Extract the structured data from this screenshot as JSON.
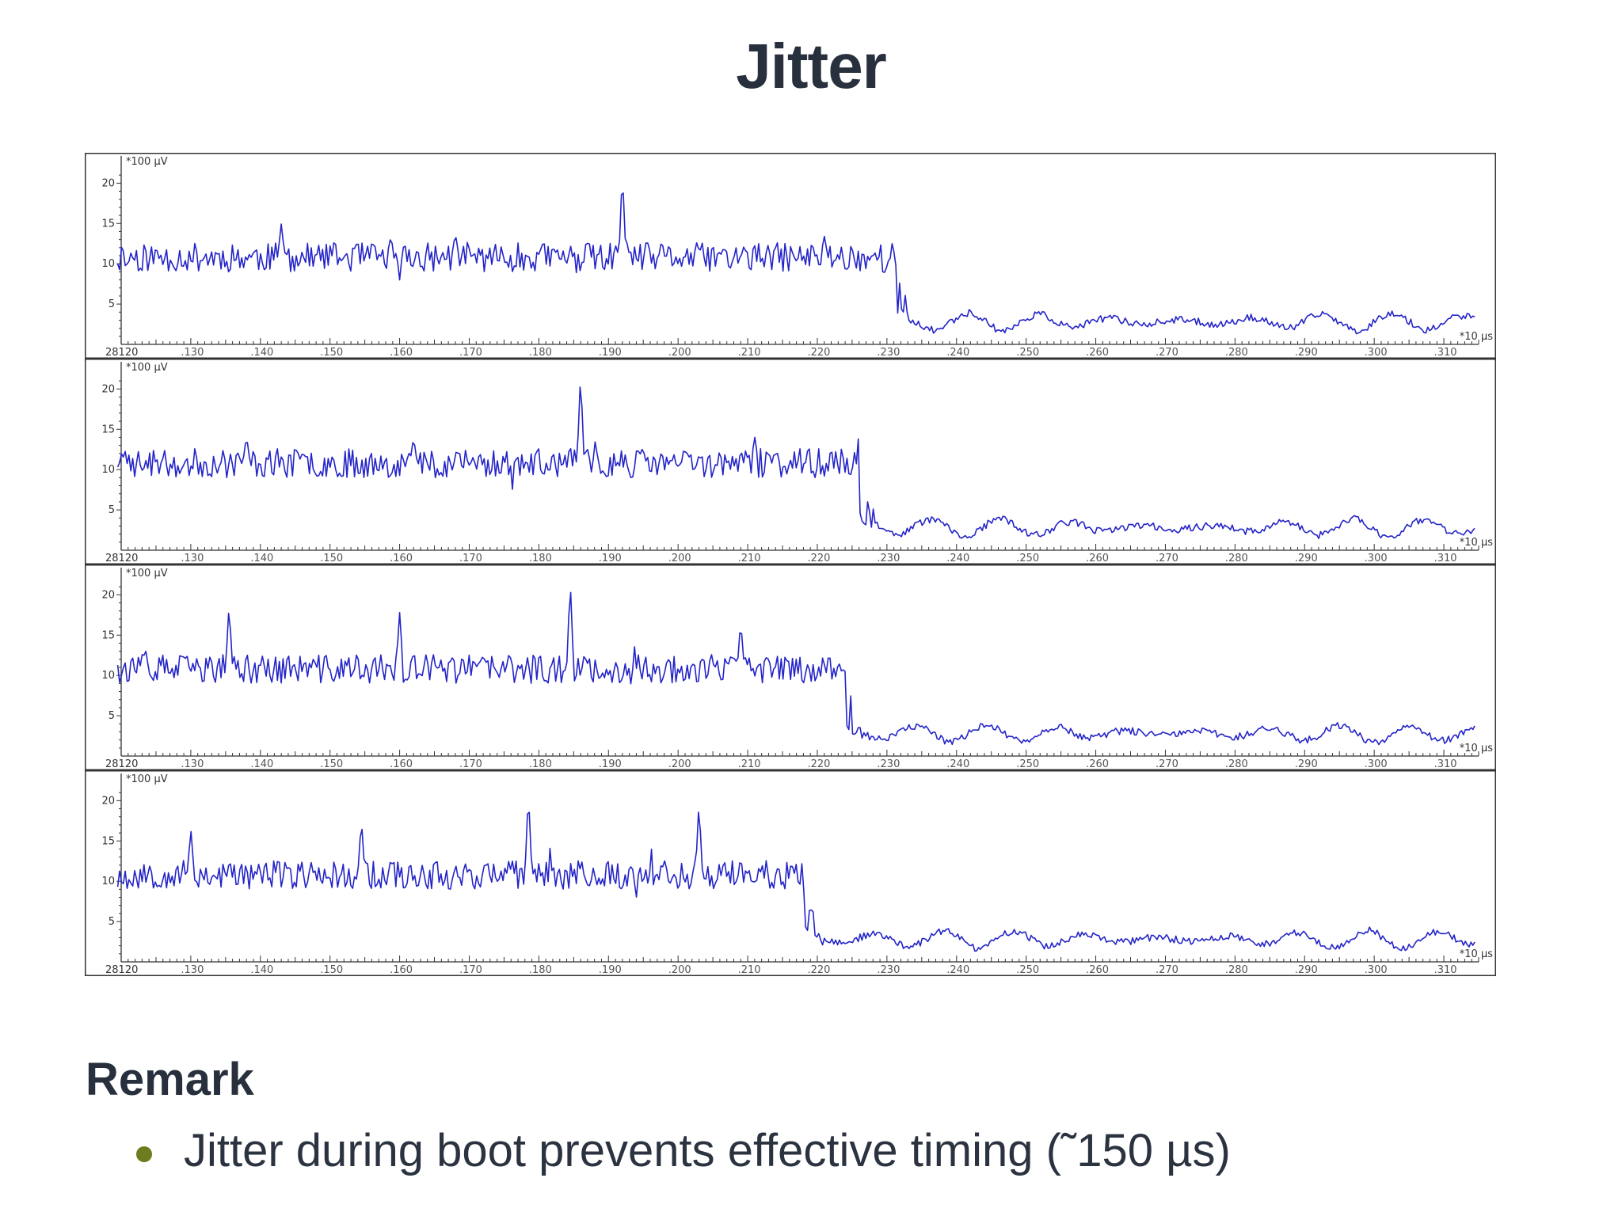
{
  "slide": {
    "title": "Jitter",
    "remark_heading": "Remark",
    "bullets": [
      "Jitter during boot prevents effective timing (˜150 µs)"
    ]
  },
  "colors": {
    "trace": "#2424c8",
    "bullet": "#6e7b1e",
    "text": "#27303c"
  },
  "chart_data": [
    {
      "type": "line",
      "title": "",
      "y_unit_label": "*100 µV",
      "x_unit_label": "*10 µs",
      "x_origin_label": "28120",
      "ylim": [
        0,
        22
      ],
      "y_ticks": [
        5,
        10,
        15,
        20
      ],
      "xlim": [
        120,
        315
      ],
      "x_tick_labels": [
        ".130",
        ".140",
        ".150",
        ".160",
        ".170",
        ".180",
        ".190",
        ".200",
        ".210",
        ".220",
        ".230",
        ".240",
        ".250",
        ".260",
        ".270",
        ".280",
        ".290",
        ".300",
        ".310"
      ],
      "series": [
        {
          "drop_at": 231.5,
          "spikes": [
            [
              143,
              15
            ],
            [
              168,
              13.8
            ],
            [
              192,
              21.5
            ],
            [
              221,
              13.5
            ]
          ],
          "seed": 11
        }
      ]
    },
    {
      "type": "line",
      "title": "",
      "y_unit_label": "*100 µV",
      "x_unit_label": "*10 µs",
      "x_origin_label": "28120",
      "ylim": [
        0,
        22
      ],
      "y_ticks": [
        5,
        10,
        15,
        20
      ],
      "xlim": [
        120,
        315
      ],
      "x_tick_labels": [
        ".130",
        ".140",
        ".150",
        ".160",
        ".170",
        ".180",
        ".190",
        ".200",
        ".210",
        ".220",
        ".230",
        ".240",
        ".250",
        ".260",
        ".270",
        ".280",
        ".290",
        ".300",
        ".310"
      ],
      "series": [
        {
          "drop_at": 226,
          "spikes": [
            [
              138,
              14.2
            ],
            [
              162,
              14
            ],
            [
              186,
              22
            ],
            [
              211,
              14.2
            ]
          ],
          "seed": 23
        }
      ]
    },
    {
      "type": "line",
      "title": "",
      "y_unit_label": "*100 µV",
      "x_unit_label": "*10 µs",
      "x_origin_label": "28120",
      "ylim": [
        0,
        22
      ],
      "y_ticks": [
        5,
        10,
        15,
        20
      ],
      "xlim": [
        120,
        315
      ],
      "x_tick_labels": [
        ".130",
        ".140",
        ".150",
        ".160",
        ".170",
        ".180",
        ".190",
        ".200",
        ".210",
        ".220",
        ".230",
        ".240",
        ".250",
        ".260",
        ".270",
        ".280",
        ".290",
        ".300",
        ".310"
      ],
      "series": [
        {
          "drop_at": 224,
          "spikes": [
            [
              135.5,
              18.8
            ],
            [
              160,
              17.8
            ],
            [
              184.5,
              21.8
            ],
            [
              209,
              16.8
            ]
          ],
          "seed": 37
        }
      ]
    },
    {
      "type": "line",
      "title": "",
      "y_unit_label": "*100 µV",
      "x_unit_label": "*10 µs",
      "x_origin_label": "28120",
      "ylim": [
        0,
        22
      ],
      "y_ticks": [
        5,
        10,
        15,
        20
      ],
      "xlim": [
        120,
        315
      ],
      "x_tick_labels": [
        ".130",
        ".140",
        ".150",
        ".160",
        ".170",
        ".180",
        ".190",
        ".200",
        ".210",
        ".220",
        ".230",
        ".240",
        ".250",
        ".260",
        ".270",
        ".280",
        ".290",
        ".300",
        ".310"
      ],
      "series": [
        {
          "drop_at": 218,
          "spikes": [
            [
              130,
              16.5
            ],
            [
              154.5,
              17.8
            ],
            [
              178.5,
              21.2
            ],
            [
              203,
              19.8
            ]
          ],
          "seed": 53
        }
      ]
    }
  ]
}
